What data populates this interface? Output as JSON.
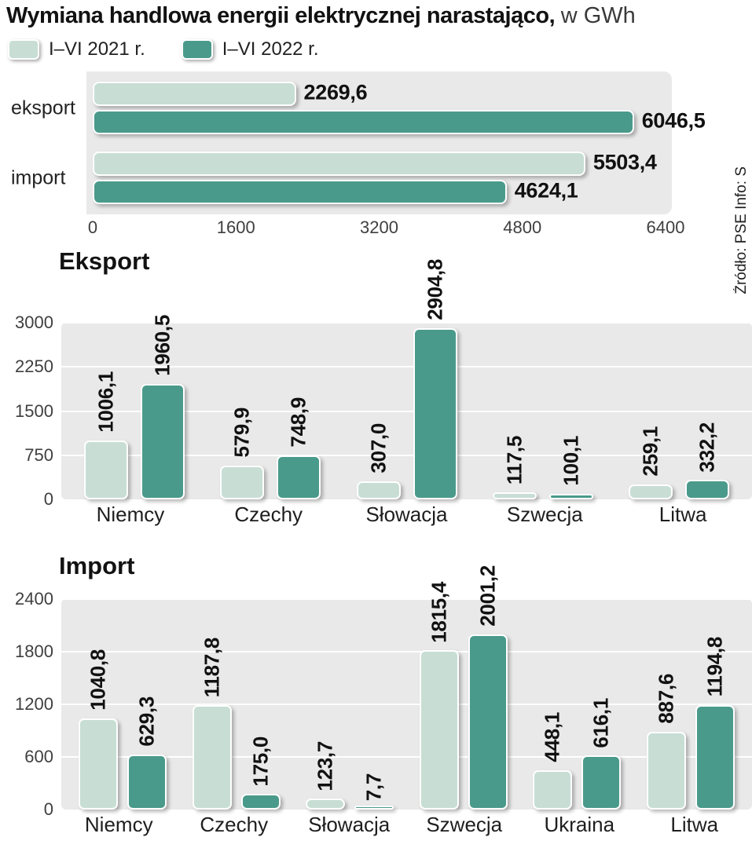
{
  "header": {
    "title": "Wymiana handlowa energii elektrycznej narastająco,",
    "unit": "w GWh"
  },
  "legend": {
    "items": [
      {
        "label": "I–VI 2021 r.",
        "color": "#c8ded5"
      },
      {
        "label": "I–VI 2022 r.",
        "color": "#4a9a8b"
      }
    ]
  },
  "source": "Źródło: PSE  Info: S",
  "colors": {
    "series_2021": "#c8ded5",
    "series_2022": "#4a9a8b",
    "plot_bg": "#e9e9e9",
    "grid": "#ffffff"
  },
  "chart_data": [
    {
      "type": "bar",
      "orientation": "horizontal",
      "title": "",
      "categories": [
        "eksport",
        "import"
      ],
      "series": [
        {
          "name": "I–VI 2021 r.",
          "values": [
            2269.6,
            5503.4
          ],
          "labels": [
            "2269,6",
            "5503,4"
          ]
        },
        {
          "name": "I–VI 2022 r.",
          "values": [
            6046.5,
            4624.1
          ],
          "labels": [
            "6046,5",
            "4624,1"
          ]
        }
      ],
      "xlim": [
        0,
        6400
      ],
      "xticks": [
        0,
        1600,
        3200,
        4800,
        6400
      ],
      "grid": false,
      "legend_position": "top"
    },
    {
      "type": "bar",
      "orientation": "vertical",
      "title": "Eksport",
      "categories": [
        "Niemcy",
        "Czechy",
        "Słowacja",
        "Szwecja",
        "Litwa"
      ],
      "series": [
        {
          "name": "I–VI 2021 r.",
          "values": [
            1006.1,
            579.9,
            307.0,
            117.5,
            259.1
          ],
          "labels": [
            "1006,1",
            "579,9",
            "307,0",
            "117,5",
            "259,1"
          ]
        },
        {
          "name": "I–VI 2022 r.",
          "values": [
            1960.5,
            748.9,
            2904.8,
            100.1,
            332.2
          ],
          "labels": [
            "1960,5",
            "748,9",
            "2904,8",
            "100,1",
            "332,2"
          ]
        }
      ],
      "ylim": [
        0,
        3000
      ],
      "yticks": [
        0,
        750,
        1500,
        2250,
        3000
      ],
      "grid": true
    },
    {
      "type": "bar",
      "orientation": "vertical",
      "title": "Import",
      "categories": [
        "Niemcy",
        "Czechy",
        "Słowacja",
        "Szwecja",
        "Ukraina",
        "Litwa"
      ],
      "series": [
        {
          "name": "I–VI 2021 r.",
          "values": [
            1040.8,
            1187.8,
            123.7,
            1815.4,
            448.1,
            887.6
          ],
          "labels": [
            "1040,8",
            "1187,8",
            "123,7",
            "1815,4",
            "448,1",
            "887,6"
          ]
        },
        {
          "name": "I–VI 2022 r.",
          "values": [
            629.3,
            175.0,
            7.7,
            2001.2,
            616.1,
            1194.8
          ],
          "labels": [
            "629,3",
            "175,0",
            "7,7",
            "2001,2",
            "616,1",
            "1194,8"
          ]
        }
      ],
      "ylim": [
        0,
        2400
      ],
      "yticks": [
        0,
        600,
        1200,
        1800,
        2400
      ],
      "grid": true
    }
  ]
}
